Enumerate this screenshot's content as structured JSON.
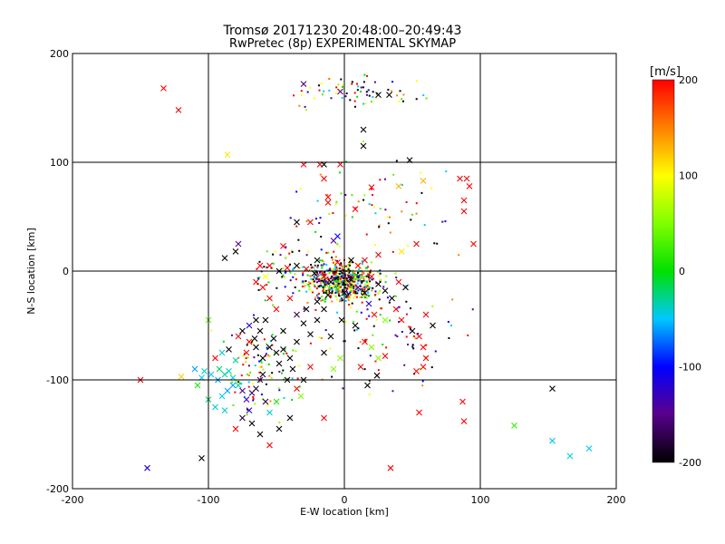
{
  "chart_data": {
    "type": "scatter",
    "title": "Tromsø 20171230 20:48:00–20:49:43",
    "subtitle": "RwPretec (8p) EXPERIMENTAL SKYMAP",
    "xlabel": "E-W location [km]",
    "ylabel": "N-S location [km]",
    "xlim": [
      -200,
      200
    ],
    "ylim": [
      -200,
      200
    ],
    "xticks": [
      "-200",
      "-100",
      "0",
      "100",
      "200"
    ],
    "yticks": [
      "-200",
      "-100",
      "0",
      "100",
      "200"
    ],
    "grid": true,
    "colorbar": {
      "label": "[m/s]",
      "range": [
        -200,
        200
      ],
      "ticks": [
        "-200",
        "-100",
        "0",
        "100",
        "200"
      ]
    },
    "markers": [
      "dot",
      "cross"
    ],
    "crosses": [
      {
        "x": -133,
        "y": 168,
        "v": 200
      },
      {
        "x": -122,
        "y": 148,
        "v": 200
      },
      {
        "x": -86,
        "y": 107,
        "v": 110
      },
      {
        "x": -30,
        "y": 172,
        "v": -160
      },
      {
        "x": -3,
        "y": 165,
        "v": -150
      },
      {
        "x": 33,
        "y": 162,
        "v": -200
      },
      {
        "x": 25,
        "y": 162,
        "v": -200
      },
      {
        "x": 14,
        "y": 130,
        "v": -200
      },
      {
        "x": 14,
        "y": 115,
        "v": -200
      },
      {
        "x": 48,
        "y": 102,
        "v": -200
      },
      {
        "x": -30,
        "y": 98,
        "v": 200
      },
      {
        "x": -18,
        "y": 98,
        "v": 200
      },
      {
        "x": -15,
        "y": 98,
        "v": -200
      },
      {
        "x": -3,
        "y": 98,
        "v": 200
      },
      {
        "x": -15,
        "y": 85,
        "v": 200
      },
      {
        "x": -12,
        "y": 68,
        "v": 200
      },
      {
        "x": 20,
        "y": 77,
        "v": 200
      },
      {
        "x": 40,
        "y": 78,
        "v": 130
      },
      {
        "x": 58,
        "y": 83,
        "v": 130
      },
      {
        "x": 85,
        "y": 85,
        "v": 200
      },
      {
        "x": 90,
        "y": 85,
        "v": 200
      },
      {
        "x": 92,
        "y": 78,
        "v": 200
      },
      {
        "x": 88,
        "y": 65,
        "v": 200
      },
      {
        "x": 88,
        "y": 55,
        "v": 200
      },
      {
        "x": 95,
        "y": 25,
        "v": 200
      },
      {
        "x": 53,
        "y": 25,
        "v": 200
      },
      {
        "x": 42,
        "y": 18,
        "v": 110
      },
      {
        "x": 8,
        "y": 57,
        "v": 200
      },
      {
        "x": -12,
        "y": 63,
        "v": 200
      },
      {
        "x": -25,
        "y": 45,
        "v": 200
      },
      {
        "x": -35,
        "y": 45,
        "v": -200
      },
      {
        "x": -45,
        "y": 23,
        "v": 200
      },
      {
        "x": -78,
        "y": 25,
        "v": -150
      },
      {
        "x": -80,
        "y": 18,
        "v": -200
      },
      {
        "x": -88,
        "y": 12,
        "v": -200
      },
      {
        "x": -120,
        "y": -97,
        "v": 120
      },
      {
        "x": -150,
        "y": -100,
        "v": 200
      },
      {
        "x": -145,
        "y": -181,
        "v": -120
      },
      {
        "x": -105,
        "y": -172,
        "v": -200
      },
      {
        "x": -100,
        "y": -45,
        "v": 40
      },
      {
        "x": -55,
        "y": -160,
        "v": 200
      },
      {
        "x": -15,
        "y": -135,
        "v": 200
      },
      {
        "x": 17,
        "y": -105,
        "v": -200
      },
      {
        "x": 24,
        "y": -96,
        "v": -200
      },
      {
        "x": 34,
        "y": -181,
        "v": 200
      },
      {
        "x": 55,
        "y": -130,
        "v": 200
      },
      {
        "x": 53,
        "y": -92,
        "v": 200
      },
      {
        "x": 58,
        "y": -88,
        "v": 200
      },
      {
        "x": 60,
        "y": -80,
        "v": 200
      },
      {
        "x": 88,
        "y": -138,
        "v": 200
      },
      {
        "x": 87,
        "y": -120,
        "v": 200
      },
      {
        "x": 125,
        "y": -142,
        "v": 20
      },
      {
        "x": 153,
        "y": -108,
        "v": -200
      },
      {
        "x": 153,
        "y": -156,
        "v": -50
      },
      {
        "x": 166,
        "y": -170,
        "v": -40
      },
      {
        "x": 180,
        "y": -163,
        "v": -50
      },
      {
        "x": -92,
        "y": -90,
        "v": -20
      },
      {
        "x": -88,
        "y": -95,
        "v": -30
      },
      {
        "x": -85,
        "y": -92,
        "v": -40
      },
      {
        "x": -82,
        "y": -98,
        "v": -50
      },
      {
        "x": -78,
        "y": -105,
        "v": -30
      },
      {
        "x": -75,
        "y": -110,
        "v": -150
      },
      {
        "x": -72,
        "y": -118,
        "v": -140
      },
      {
        "x": -68,
        "y": -112,
        "v": -170
      },
      {
        "x": -65,
        "y": -108,
        "v": -180
      },
      {
        "x": -62,
        "y": -100,
        "v": -160
      },
      {
        "x": -60,
        "y": -95,
        "v": -190
      },
      {
        "x": -58,
        "y": -120,
        "v": -180
      },
      {
        "x": -70,
        "y": -128,
        "v": -130
      },
      {
        "x": -75,
        "y": -135,
        "v": -180
      },
      {
        "x": -68,
        "y": -140,
        "v": -200
      },
      {
        "x": -55,
        "y": -130,
        "v": -40
      },
      {
        "x": -50,
        "y": -120,
        "v": 10
      },
      {
        "x": -80,
        "y": -82,
        "v": -30
      },
      {
        "x": -72,
        "y": -75,
        "v": 200
      },
      {
        "x": -65,
        "y": -70,
        "v": -200
      },
      {
        "x": -60,
        "y": -80,
        "v": -200
      },
      {
        "x": -55,
        "y": -70,
        "v": -200
      },
      {
        "x": -50,
        "y": -75,
        "v": -200
      },
      {
        "x": -45,
        "y": -72,
        "v": -200
      },
      {
        "x": -40,
        "y": -80,
        "v": -200
      },
      {
        "x": -38,
        "y": -90,
        "v": -200
      },
      {
        "x": -42,
        "y": -100,
        "v": -200
      },
      {
        "x": -48,
        "y": -85,
        "v": -200
      },
      {
        "x": -52,
        "y": -62,
        "v": -200
      },
      {
        "x": -45,
        "y": -55,
        "v": -200
      },
      {
        "x": -35,
        "y": -65,
        "v": -200
      },
      {
        "x": -30,
        "y": -48,
        "v": -200
      },
      {
        "x": -25,
        "y": -58,
        "v": -200
      },
      {
        "x": -20,
        "y": -45,
        "v": -200
      },
      {
        "x": -15,
        "y": -35,
        "v": -200
      },
      {
        "x": -28,
        "y": -35,
        "v": -200
      },
      {
        "x": -35,
        "y": -40,
        "v": -170
      },
      {
        "x": -58,
        "y": -45,
        "v": -200
      },
      {
        "x": -62,
        "y": -55,
        "v": -200
      },
      {
        "x": -66,
        "y": -62,
        "v": -200
      },
      {
        "x": -70,
        "y": -65,
        "v": 200
      },
      {
        "x": -40,
        "y": -25,
        "v": 200
      },
      {
        "x": -50,
        "y": -35,
        "v": 200
      },
      {
        "x": -55,
        "y": -25,
        "v": 200
      },
      {
        "x": -60,
        "y": -15,
        "v": 200
      },
      {
        "x": -65,
        "y": -10,
        "v": 200
      },
      {
        "x": -58,
        "y": -5,
        "v": 100
      },
      {
        "x": -62,
        "y": 5,
        "v": 200
      },
      {
        "x": -55,
        "y": 5,
        "v": 200
      },
      {
        "x": -48,
        "y": 0,
        "v": -200
      },
      {
        "x": -42,
        "y": 3,
        "v": 200
      },
      {
        "x": -35,
        "y": 5,
        "v": -200
      },
      {
        "x": -28,
        "y": 2,
        "v": 200
      },
      {
        "x": -22,
        "y": -2,
        "v": -200
      },
      {
        "x": -15,
        "y": -5,
        "v": 200
      },
      {
        "x": -10,
        "y": -10,
        "v": -200
      },
      {
        "x": -5,
        "y": -15,
        "v": 50
      },
      {
        "x": 0,
        "y": -20,
        "v": -200
      },
      {
        "x": 5,
        "y": -8,
        "v": -200
      },
      {
        "x": 10,
        "y": -15,
        "v": -150
      },
      {
        "x": 15,
        "y": -20,
        "v": -200
      },
      {
        "x": 20,
        "y": -5,
        "v": 200
      },
      {
        "x": 25,
        "y": -12,
        "v": -200
      },
      {
        "x": 30,
        "y": -18,
        "v": -200
      },
      {
        "x": 35,
        "y": -25,
        "v": -200
      },
      {
        "x": 40,
        "y": -10,
        "v": 200
      },
      {
        "x": 45,
        "y": -15,
        "v": -200
      },
      {
        "x": 10,
        "y": 5,
        "v": 200
      },
      {
        "x": 5,
        "y": 10,
        "v": -200
      },
      {
        "x": -5,
        "y": 8,
        "v": 200
      },
      {
        "x": -20,
        "y": 10,
        "v": -200
      },
      {
        "x": 15,
        "y": 10,
        "v": 200
      },
      {
        "x": 25,
        "y": 15,
        "v": 200
      },
      {
        "x": -8,
        "y": 28,
        "v": -150
      },
      {
        "x": -5,
        "y": 32,
        "v": -100
      },
      {
        "x": -12,
        "y": -22,
        "v": -200
      },
      {
        "x": -20,
        "y": -28,
        "v": -200
      },
      {
        "x": 18,
        "y": -30,
        "v": -120
      },
      {
        "x": 22,
        "y": -40,
        "v": 200
      },
      {
        "x": 30,
        "y": -45,
        "v": 50
      },
      {
        "x": 38,
        "y": -35,
        "v": 200
      },
      {
        "x": 42,
        "y": -45,
        "v": 200
      },
      {
        "x": 50,
        "y": -55,
        "v": -200
      },
      {
        "x": 55,
        "y": -60,
        "v": 200
      },
      {
        "x": 58,
        "y": -70,
        "v": 200
      },
      {
        "x": 65,
        "y": -50,
        "v": -200
      },
      {
        "x": 60,
        "y": -40,
        "v": 200
      },
      {
        "x": 15,
        "y": -65,
        "v": 200
      },
      {
        "x": 20,
        "y": -70,
        "v": 50
      },
      {
        "x": 25,
        "y": -80,
        "v": 50
      },
      {
        "x": 30,
        "y": -78,
        "v": 200
      },
      {
        "x": 12,
        "y": -88,
        "v": 200
      },
      {
        "x": 8,
        "y": -50,
        "v": -200
      },
      {
        "x": -2,
        "y": -45,
        "v": -200
      },
      {
        "x": -10,
        "y": -60,
        "v": -200
      },
      {
        "x": -15,
        "y": -75,
        "v": -200
      },
      {
        "x": -25,
        "y": -88,
        "v": 200
      },
      {
        "x": -8,
        "y": -90,
        "v": 50
      },
      {
        "x": -3,
        "y": -80,
        "v": 50
      },
      {
        "x": -30,
        "y": -100,
        "v": -200
      },
      {
        "x": -35,
        "y": -108,
        "v": 200
      },
      {
        "x": -32,
        "y": -115,
        "v": 50
      },
      {
        "x": -40,
        "y": -135,
        "v": -200
      },
      {
        "x": -48,
        "y": -145,
        "v": -200
      },
      {
        "x": -62,
        "y": -150,
        "v": -200
      },
      {
        "x": -80,
        "y": -145,
        "v": 200
      },
      {
        "x": -88,
        "y": -128,
        "v": -40
      },
      {
        "x": -95,
        "y": -125,
        "v": -40
      },
      {
        "x": -100,
        "y": -118,
        "v": -20
      },
      {
        "x": -108,
        "y": -105,
        "v": 10
      },
      {
        "x": -95,
        "y": -80,
        "v": 200
      },
      {
        "x": -90,
        "y": -75,
        "v": -40
      },
      {
        "x": -85,
        "y": -72,
        "v": -200
      },
      {
        "x": -78,
        "y": -60,
        "v": 200
      },
      {
        "x": -75,
        "y": -55,
        "v": -200
      },
      {
        "x": -70,
        "y": -50,
        "v": -120
      },
      {
        "x": -65,
        "y": -45,
        "v": -200
      },
      {
        "x": -82,
        "y": -105,
        "v": -60
      },
      {
        "x": -86,
        "y": -110,
        "v": -60
      },
      {
        "x": -90,
        "y": -115,
        "v": -50
      },
      {
        "x": -93,
        "y": -100,
        "v": -60
      },
      {
        "x": -98,
        "y": -95,
        "v": -50
      },
      {
        "x": -103,
        "y": -92,
        "v": -40
      },
      {
        "x": -110,
        "y": -90,
        "v": -60
      },
      {
        "x": -105,
        "y": -98,
        "v": -50
      }
    ]
  }
}
